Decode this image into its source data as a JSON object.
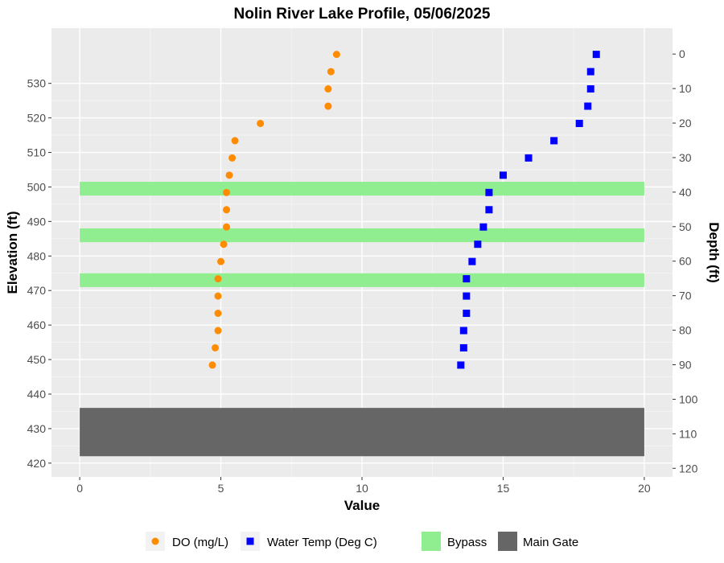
{
  "chart_data": {
    "type": "scatter",
    "title": "Nolin River Lake Profile,  05/06/2025",
    "xlabel": "Value",
    "ylabel": "Elevation (ft)",
    "y2label": "Depth (ft)",
    "xlim": [
      -1,
      21
    ],
    "ylim": [
      416,
      546
    ],
    "x_ticks": [
      "0",
      "5",
      "10",
      "15",
      "20"
    ],
    "y_ticks": [
      "420",
      "430",
      "440",
      "450",
      "460",
      "470",
      "480",
      "490",
      "500",
      "510",
      "520",
      "530"
    ],
    "y2_ticks": [
      "0",
      "10",
      "20",
      "30",
      "40",
      "50",
      "60",
      "70",
      "80",
      "90",
      "100",
      "110",
      "120"
    ],
    "surface_elevation": 538.5,
    "grid": true,
    "legend_position": "bottom",
    "series": [
      {
        "name": "DO (mg/L)",
        "marker": "circle",
        "color": "#FF8C00",
        "points": [
          [
            9.1,
            538.4
          ],
          [
            8.9,
            533.4
          ],
          [
            8.8,
            528.4
          ],
          [
            8.8,
            523.4
          ],
          [
            6.4,
            518.4
          ],
          [
            5.5,
            513.4
          ],
          [
            5.4,
            508.4
          ],
          [
            5.3,
            503.4
          ],
          [
            5.2,
            498.4
          ],
          [
            5.2,
            493.4
          ],
          [
            5.2,
            488.4
          ],
          [
            5.1,
            483.4
          ],
          [
            5.0,
            478.4
          ],
          [
            4.9,
            473.4
          ],
          [
            4.9,
            468.4
          ],
          [
            4.9,
            463.4
          ],
          [
            4.9,
            458.4
          ],
          [
            4.8,
            453.4
          ],
          [
            4.7,
            448.4
          ]
        ]
      },
      {
        "name": "Water Temp (Deg C)",
        "marker": "square",
        "color": "#0000FF",
        "points": [
          [
            18.3,
            538.4
          ],
          [
            18.1,
            533.4
          ],
          [
            18.1,
            528.4
          ],
          [
            18.0,
            523.4
          ],
          [
            17.7,
            518.4
          ],
          [
            16.8,
            513.4
          ],
          [
            15.9,
            508.4
          ],
          [
            15.0,
            503.4
          ],
          [
            14.5,
            498.4
          ],
          [
            14.5,
            493.4
          ],
          [
            14.3,
            488.4
          ],
          [
            14.1,
            483.4
          ],
          [
            13.9,
            478.4
          ],
          [
            13.7,
            473.4
          ],
          [
            13.7,
            468.4
          ],
          [
            13.7,
            463.4
          ],
          [
            13.6,
            458.4
          ],
          [
            13.6,
            453.4
          ],
          [
            13.5,
            448.4
          ]
        ]
      }
    ],
    "bands": [
      {
        "name": "Bypass",
        "color": "#90EE90",
        "x": [
          0,
          20
        ],
        "y": [
          497.5,
          501.5
        ]
      },
      {
        "name": "Bypass",
        "color": "#90EE90",
        "x": [
          0,
          20
        ],
        "y": [
          484,
          488
        ]
      },
      {
        "name": "Bypass",
        "color": "#90EE90",
        "x": [
          0,
          20
        ],
        "y": [
          471,
          475
        ]
      },
      {
        "name": "Main Gate",
        "color": "#666666",
        "x": [
          0,
          20
        ],
        "y": [
          422,
          436
        ]
      }
    ]
  },
  "legend": {
    "items": [
      {
        "label": "DO (mg/L)",
        "icon": "orange-circle",
        "color": "#FF8C00"
      },
      {
        "label": "Water Temp (Deg C)",
        "icon": "blue-square",
        "color": "#0000FF"
      },
      {
        "label": "Bypass",
        "icon": "green-rect",
        "color": "#90EE90"
      },
      {
        "label": "Main Gate",
        "icon": "gray-rect",
        "color": "#666666"
      }
    ]
  }
}
